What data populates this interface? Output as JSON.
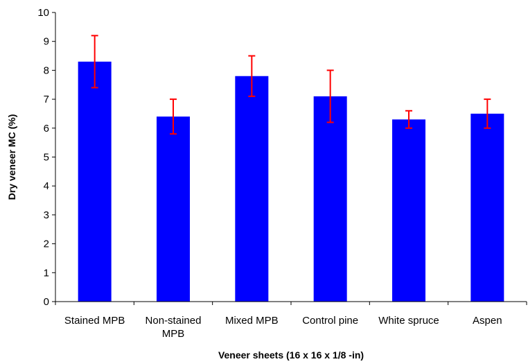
{
  "chart_data": {
    "type": "bar",
    "categories": [
      [
        "Stained MPB"
      ],
      [
        "Non-stained",
        "MPB"
      ],
      [
        "Mixed MPB"
      ],
      [
        "Control pine"
      ],
      [
        "White spruce"
      ],
      [
        "Aspen"
      ]
    ],
    "values": [
      8.3,
      6.4,
      7.8,
      7.1,
      6.3,
      6.5
    ],
    "error_low": [
      7.4,
      5.8,
      7.1,
      6.2,
      6.0,
      6.0
    ],
    "error_high": [
      9.2,
      7.0,
      8.5,
      8.0,
      6.6,
      7.0
    ],
    "xlabel": "Veneer sheets (16 x 16 x 1/8 -in)",
    "ylabel": "Dry veneer MC (%)",
    "ylim": [
      0,
      10
    ],
    "yticks": [
      0,
      1,
      2,
      3,
      4,
      5,
      6,
      7,
      8,
      9,
      10
    ],
    "grid": false,
    "legend": "none",
    "bar_color": "#0000ff",
    "error_bar_color": "#ff0000",
    "axis_color": "#000000"
  }
}
